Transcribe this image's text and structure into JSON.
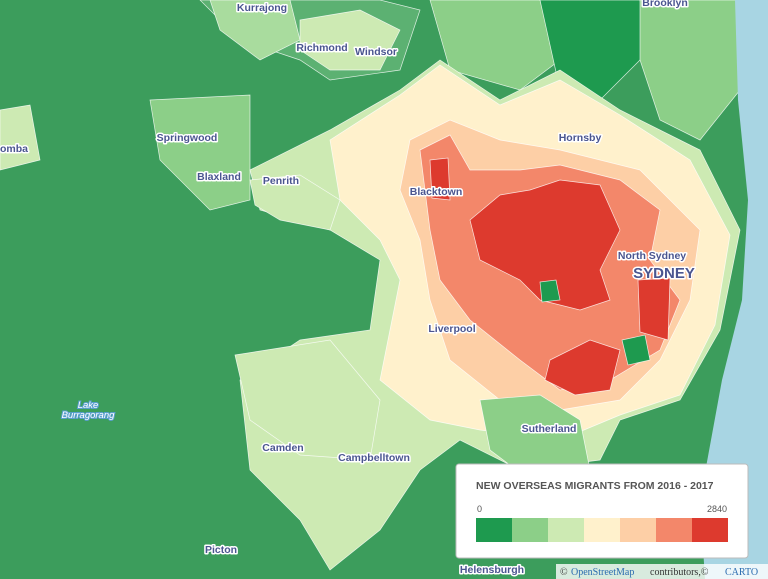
{
  "map": {
    "place_labels": [
      "Kurrajong",
      "Richmond",
      "Windsor",
      "Brooklyn",
      "Springwood",
      "Hornsby",
      "omba",
      "Blaxland",
      "Penrith",
      "Blacktown",
      "North Sydney",
      "SYDNEY",
      "Liverpool",
      "Lake",
      "Burragorang",
      "Sutherland",
      "Camden",
      "Campbelltown",
      "Picton",
      "Helensburgh"
    ],
    "legend": {
      "title": "NEW OVERSEAS MIGRANTS FROM 2016 - 2017",
      "min_label": "0",
      "max_label": "2840",
      "colors": [
        "#1e9a4f",
        "#8ccf88",
        "#cdeab3",
        "#fff1cc",
        "#fdcfa6",
        "#f3876a",
        "#dd3a2e"
      ]
    },
    "attribution": [
      "©",
      "OpenStreetMap",
      "contributors,©",
      "CARTO"
    ]
  }
}
